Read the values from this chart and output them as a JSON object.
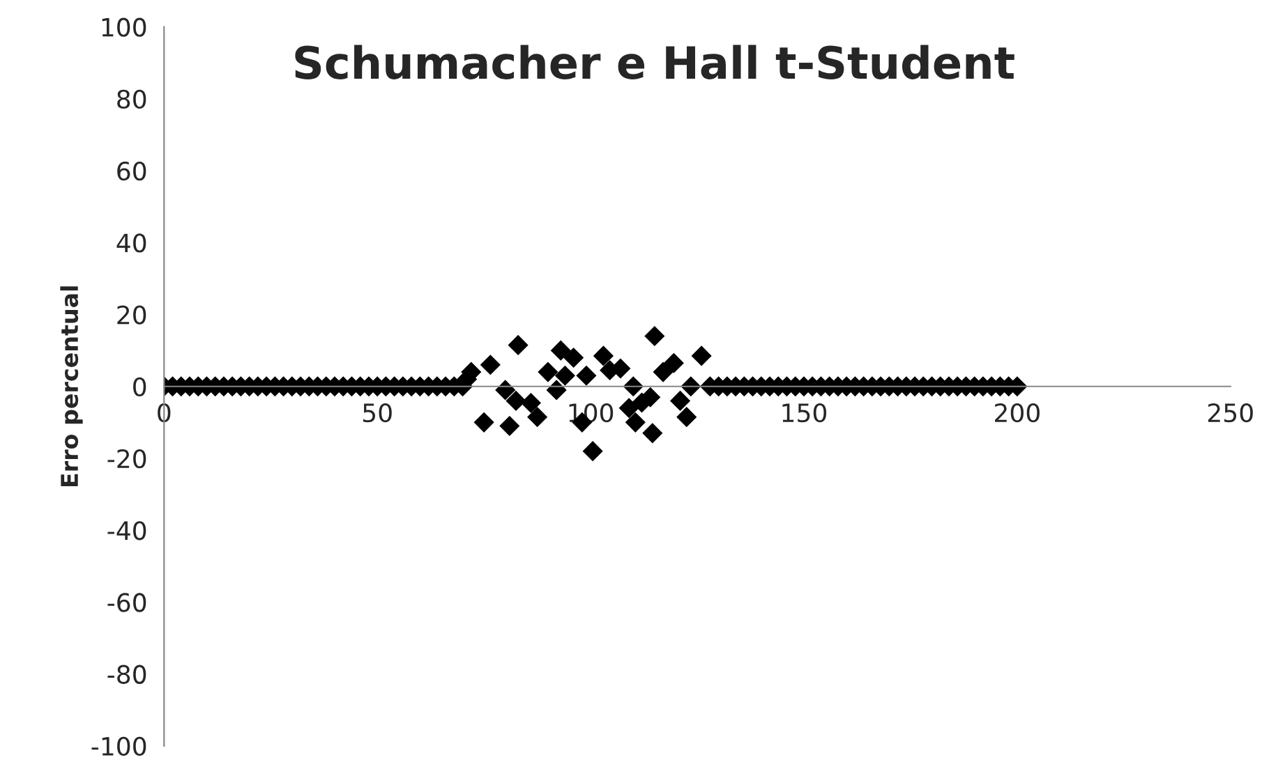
{
  "chart_data": {
    "type": "scatter",
    "title": "Schumacher e Hall t-Student",
    "ylabel": "Erro percentual",
    "x": [
      0,
      2,
      4,
      6,
      8,
      10,
      12,
      14,
      16,
      18,
      20,
      22,
      24,
      26,
      28,
      30,
      32,
      34,
      36,
      38,
      40,
      42,
      44,
      46,
      48,
      50,
      52,
      54,
      56,
      58,
      60,
      62,
      64,
      66,
      68,
      70,
      71,
      72,
      75,
      76.5,
      80,
      81,
      82.5,
      83,
      86,
      87.5,
      90,
      92,
      93,
      94,
      96,
      98,
      99,
      100.5,
      103,
      104.5,
      107,
      109,
      110,
      110.5,
      112,
      114,
      114.5,
      115,
      117,
      119.5,
      121,
      122.5,
      123.5,
      126,
      128,
      130,
      132,
      134,
      136,
      138,
      140,
      142,
      144,
      146,
      148,
      150,
      152,
      154,
      156,
      158,
      160,
      162,
      164,
      166,
      168,
      170,
      172,
      174,
      176,
      178,
      180,
      182,
      184,
      186,
      188,
      190,
      192,
      194,
      196,
      198,
      200
    ],
    "values": [
      0,
      0,
      0,
      0,
      0,
      0,
      0,
      0,
      0,
      0,
      0,
      0,
      0,
      0,
      0,
      0,
      0,
      0,
      0,
      0,
      0,
      0,
      0,
      0,
      0,
      0,
      0,
      0,
      0,
      0,
      0,
      0,
      0,
      0,
      0,
      0,
      2,
      4,
      -10,
      6,
      -1,
      -11,
      -4,
      11.5,
      -4.6,
      -8.5,
      4,
      -1,
      10,
      3,
      8,
      -10,
      3,
      -18,
      8.5,
      4.5,
      5,
      -6,
      0,
      -10,
      -4.5,
      -3,
      -13,
      14,
      4,
      6.5,
      -4,
      -8.5,
      0,
      8.5,
      0,
      0,
      0,
      0,
      0,
      0,
      0,
      0,
      0,
      0,
      0,
      0,
      0,
      0,
      0,
      0,
      0,
      0,
      0,
      0,
      0,
      0,
      0,
      0,
      0,
      0,
      0,
      0,
      0,
      0,
      0,
      0,
      0,
      0,
      0,
      0,
      0
    ],
    "color": "#000000",
    "marker": "diamond",
    "xlim": [
      0,
      250
    ],
    "xticks": [
      0,
      50,
      100,
      150,
      200,
      250
    ],
    "ylim": [
      -100,
      100
    ],
    "yticks": [
      -100,
      -80,
      -60,
      -40,
      -20,
      0,
      20,
      40,
      60,
      80,
      100
    ],
    "grid": false,
    "legend": false
  }
}
